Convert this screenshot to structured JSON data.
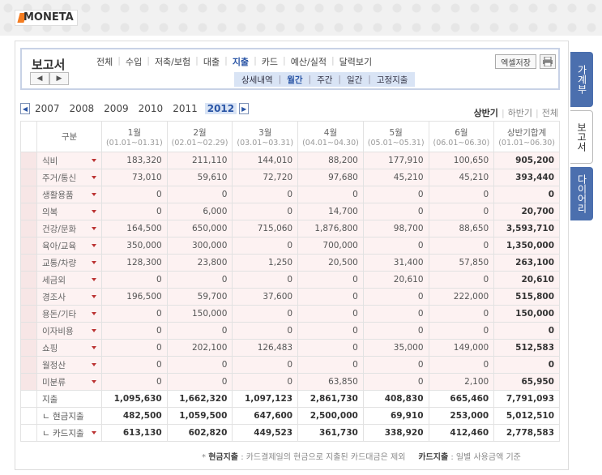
{
  "brand": {
    "logo": "MONETA"
  },
  "header": {
    "title": "보고서",
    "menu": [
      "전체",
      "수입",
      "저축/보험",
      "대출",
      "지출",
      "카드",
      "예산/실적",
      "달력보기"
    ],
    "submenu": [
      "상세내역",
      "월간",
      "주간",
      "일간",
      "고정지출"
    ],
    "excel_label": "엑셀저장"
  },
  "years": [
    "2007",
    "2008",
    "2009",
    "2010",
    "2011",
    "2012"
  ],
  "period": [
    "상반기",
    "하반기",
    "전체"
  ],
  "table": {
    "headers": [
      {
        "title": "구분",
        "sub": ""
      },
      {
        "title": "1월",
        "sub": "(01.01~01.31)"
      },
      {
        "title": "2월",
        "sub": "(02.01~02.29)"
      },
      {
        "title": "3월",
        "sub": "(03.01~03.31)"
      },
      {
        "title": "4월",
        "sub": "(04.01~04.30)"
      },
      {
        "title": "5월",
        "sub": "(05.01~05.31)"
      },
      {
        "title": "6월",
        "sub": "(06.01~06.30)"
      },
      {
        "title": "상반기합계",
        "sub": "(01.01~06.30)"
      }
    ],
    "rows": [
      {
        "label": "식비",
        "values": [
          "183,320",
          "211,110",
          "144,010",
          "88,200",
          "177,910",
          "100,650"
        ],
        "total": "905,200"
      },
      {
        "label": "주거/통신",
        "values": [
          "73,010",
          "59,610",
          "72,720",
          "97,680",
          "45,210",
          "45,210"
        ],
        "total": "393,440"
      },
      {
        "label": "생활용품",
        "values": [
          "0",
          "0",
          "0",
          "0",
          "0",
          "0"
        ],
        "total": "0"
      },
      {
        "label": "의복",
        "values": [
          "0",
          "6,000",
          "0",
          "14,700",
          "0",
          "0"
        ],
        "total": "20,700"
      },
      {
        "label": "건강/문화",
        "values": [
          "164,500",
          "650,000",
          "715,060",
          "1,876,800",
          "98,700",
          "88,650"
        ],
        "total": "3,593,710"
      },
      {
        "label": "육아/교육",
        "values": [
          "350,000",
          "300,000",
          "0",
          "700,000",
          "0",
          "0"
        ],
        "total": "1,350,000"
      },
      {
        "label": "교통/차량",
        "values": [
          "128,300",
          "23,800",
          "1,250",
          "20,500",
          "31,400",
          "57,850"
        ],
        "total": "263,100"
      },
      {
        "label": "세금외",
        "values": [
          "0",
          "0",
          "0",
          "0",
          "20,610",
          "0"
        ],
        "total": "20,610"
      },
      {
        "label": "경조사",
        "values": [
          "196,500",
          "59,700",
          "37,600",
          "0",
          "0",
          "222,000"
        ],
        "total": "515,800"
      },
      {
        "label": "용돈/기타",
        "values": [
          "0",
          "150,000",
          "0",
          "0",
          "0",
          "0"
        ],
        "total": "150,000"
      },
      {
        "label": "이자비용",
        "values": [
          "0",
          "0",
          "0",
          "0",
          "0",
          "0"
        ],
        "total": "0"
      },
      {
        "label": "쇼핑",
        "values": [
          "0",
          "202,100",
          "126,483",
          "0",
          "35,000",
          "149,000"
        ],
        "total": "512,583"
      },
      {
        "label": "월정산",
        "values": [
          "0",
          "0",
          "0",
          "0",
          "0",
          "0"
        ],
        "total": "0"
      },
      {
        "label": "미분류",
        "values": [
          "0",
          "0",
          "0",
          "63,850",
          "0",
          "2,100"
        ],
        "total": "65,950"
      }
    ],
    "summary": {
      "label": "지출",
      "values": [
        "1,095,630",
        "1,662,320",
        "1,097,123",
        "2,861,730",
        "408,830",
        "665,460"
      ],
      "total": "7,791,093"
    },
    "cash": {
      "label": "ㄴ 현금지출",
      "values": [
        "482,500",
        "1,059,500",
        "647,600",
        "2,500,000",
        "69,910",
        "253,000"
      ],
      "total": "5,012,510"
    },
    "card": {
      "label": "ㄴ 카드지출",
      "values": [
        "613,130",
        "602,820",
        "449,523",
        "361,730",
        "338,920",
        "412,460"
      ],
      "total": "2,778,583"
    }
  },
  "footnote": {
    "cash_title": "현금지출",
    "cash_text": ": 카드결제일의 현금으로 지출된 카드대금은 제외",
    "card_title": "카드지출",
    "card_text": ": 일별 사용금액 기준"
  },
  "side_tabs": [
    "가계부",
    "보고서",
    "다이어리"
  ]
}
